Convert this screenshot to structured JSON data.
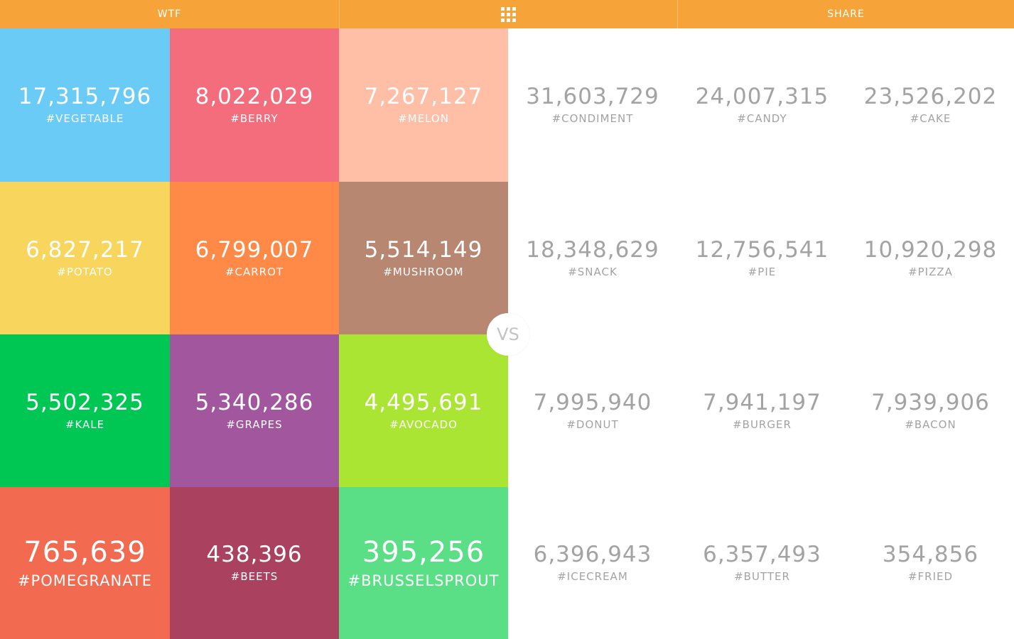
{
  "header": {
    "left_label": "WTF",
    "center_icon": "grid-icon",
    "right_label": "SHARE",
    "bar_color": "#f6a43a"
  },
  "vs_label": "VS",
  "veggie_tiles": [
    {
      "count": "17,315,796",
      "tag": "#VEGETABLE",
      "color": "#6bcbf7"
    },
    {
      "count": "8,022,029",
      "tag": "#BERRY",
      "color": "#f36d7c"
    },
    {
      "count": "7,267,127",
      "tag": "#MELON",
      "color": "#ffbfa6"
    },
    {
      "count": "6,827,217",
      "tag": "#POTATO",
      "color": "#f8d65d"
    },
    {
      "count": "6,799,007",
      "tag": "#CARROT",
      "color": "#ff8a47"
    },
    {
      "count": "5,514,149",
      "tag": "#MUSHROOM",
      "color": "#b78772"
    },
    {
      "count": "5,502,325",
      "tag": "#KALE",
      "color": "#00c753"
    },
    {
      "count": "5,340,286",
      "tag": "#GRAPES",
      "color": "#a1569e"
    },
    {
      "count": "4,495,691",
      "tag": "#AVOCADO",
      "color": "#abe533"
    },
    {
      "count": "765,639",
      "tag": "#POMEGRANATE",
      "color": "#f26a4f"
    },
    {
      "count": "438,396",
      "tag": "#BEETS",
      "color": "#aa415e"
    },
    {
      "count": "395,256",
      "tag": "#BRUSSELSPROUT",
      "color": "#5ade86"
    }
  ],
  "junk_tiles": [
    {
      "count": "31,603,729",
      "tag": "#CONDIMENT"
    },
    {
      "count": "24,007,315",
      "tag": "#CANDY"
    },
    {
      "count": "23,526,202",
      "tag": "#CAKE"
    },
    {
      "count": "18,348,629",
      "tag": "#SNACK"
    },
    {
      "count": "12,756,541",
      "tag": "#PIE"
    },
    {
      "count": "10,920,298",
      "tag": "#PIZZA"
    },
    {
      "count": "7,995,940",
      "tag": "#DONUT"
    },
    {
      "count": "7,941,197",
      "tag": "#BURGER"
    },
    {
      "count": "7,939,906",
      "tag": "#BACON"
    },
    {
      "count": "6,396,943",
      "tag": "#ICECREAM"
    },
    {
      "count": "6,357,493",
      "tag": "#BUTTER"
    },
    {
      "count": "354,856",
      "tag": "#FRIED"
    }
  ]
}
